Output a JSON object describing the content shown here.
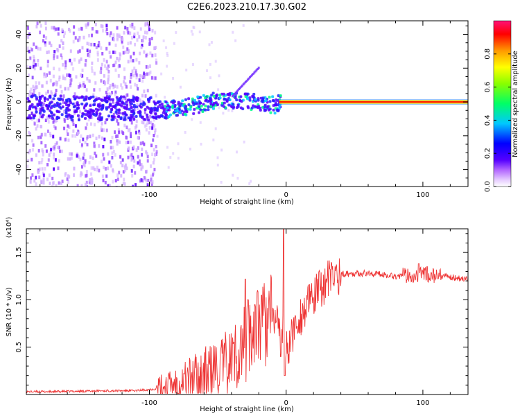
{
  "title": "C2E6.2023.210.17.30.G02",
  "chart_data": [
    {
      "type": "heatmap",
      "xlabel": "Height of straight line (km)",
      "ylabel": "Frequency (Hz)",
      "xlim": [
        -190,
        133
      ],
      "ylim": [
        -50,
        48
      ],
      "x_ticks": [
        {
          "value": -100,
          "label": "-100"
        },
        {
          "value": 0,
          "label": "0"
        },
        {
          "value": 100,
          "label": "100"
        }
      ],
      "y_ticks": [
        {
          "value": -40,
          "label": "-40"
        },
        {
          "value": -20,
          "label": "-20"
        },
        {
          "value": 0,
          "label": "0"
        },
        {
          "value": 20,
          "label": "20"
        },
        {
          "value": 40,
          "label": "40"
        }
      ],
      "colorbar": {
        "label": "Normalized spectral amplitude",
        "range": [
          0,
          1
        ],
        "ticks": [
          {
            "value": 0.0,
            "label": "0.0"
          },
          {
            "value": 0.2,
            "label": "0.2"
          },
          {
            "value": 0.4,
            "label": "0.4"
          },
          {
            "value": 0.6,
            "label": "0.6"
          },
          {
            "value": 0.8,
            "label": "0.8"
          }
        ]
      },
      "ridge": [
        {
          "x": -190,
          "freq": -2
        },
        {
          "x": -150,
          "freq": -3
        },
        {
          "x": -110,
          "freq": -3
        },
        {
          "x": -90,
          "freq": -4
        },
        {
          "x": -75,
          "freq": -2
        },
        {
          "x": -60,
          "freq": 0
        },
        {
          "x": -50,
          "freq": 3
        },
        {
          "x": -40,
          "freq": 1
        },
        {
          "x": -30,
          "freq": 1
        },
        {
          "x": -20,
          "freq": 0
        },
        {
          "x": -10,
          "freq": -1
        },
        {
          "x": -5,
          "freq": 0
        },
        {
          "x": 133,
          "freq": 0
        }
      ]
    },
    {
      "type": "line",
      "xlabel": "Height of straight line (km)",
      "ylabel": "SNR (10 * v/v)",
      "y_multiplier": "(x10⁴)",
      "xlim": [
        -190,
        133
      ],
      "ylim": [
        0,
        1.75
      ],
      "x_ticks": [
        {
          "value": -100,
          "label": "-100"
        },
        {
          "value": 0,
          "label": "0"
        },
        {
          "value": 100,
          "label": "100"
        }
      ],
      "y_ticks": [
        {
          "value": 0.5,
          "label": "0.5"
        },
        {
          "value": 1.0,
          "label": "1.0"
        },
        {
          "value": 1.5,
          "label": "1.5"
        }
      ],
      "series": [
        {
          "color": "#ee3333",
          "points": [
            [
              -190,
              0.03
            ],
            [
              -170,
              0.03
            ],
            [
              -150,
              0.035
            ],
            [
              -130,
              0.04
            ],
            [
              -110,
              0.04
            ],
            [
              -95,
              0.06
            ],
            [
              -85,
              0.1
            ],
            [
              -75,
              0.16
            ],
            [
              -65,
              0.2
            ],
            [
              -55,
              0.24
            ],
            [
              -45,
              0.3
            ],
            [
              -38,
              0.4
            ],
            [
              -32,
              0.5
            ],
            [
              -27,
              0.6
            ],
            [
              -22,
              0.66
            ],
            [
              -18,
              0.72
            ],
            [
              -12,
              0.78
            ],
            [
              -7,
              0.8
            ],
            [
              -4,
              0.75
            ],
            [
              -2,
              0.6
            ],
            [
              0,
              0.45
            ],
            [
              3,
              0.55
            ],
            [
              6,
              0.7
            ],
            [
              10,
              0.82
            ],
            [
              15,
              0.92
            ],
            [
              20,
              1.02
            ],
            [
              25,
              1.12
            ],
            [
              30,
              1.2
            ],
            [
              35,
              1.25
            ],
            [
              40,
              1.27
            ],
            [
              50,
              1.28
            ],
            [
              60,
              1.28
            ],
            [
              70,
              1.27
            ],
            [
              80,
              1.25
            ],
            [
              90,
              1.26
            ],
            [
              100,
              1.27
            ],
            [
              110,
              1.25
            ],
            [
              120,
              1.24
            ],
            [
              133,
              1.22
            ]
          ],
          "spikes": [
            [
              -30,
              1.22
            ],
            [
              -28,
              1.0
            ],
            [
              -23,
              0.95
            ],
            [
              -18,
              1.05
            ],
            [
              -2,
              1.75
            ],
            [
              -4,
              0.4
            ],
            [
              -1,
              0.2
            ],
            [
              97,
              1.38
            ],
            [
              103,
              1.35
            ]
          ]
        }
      ]
    }
  ]
}
